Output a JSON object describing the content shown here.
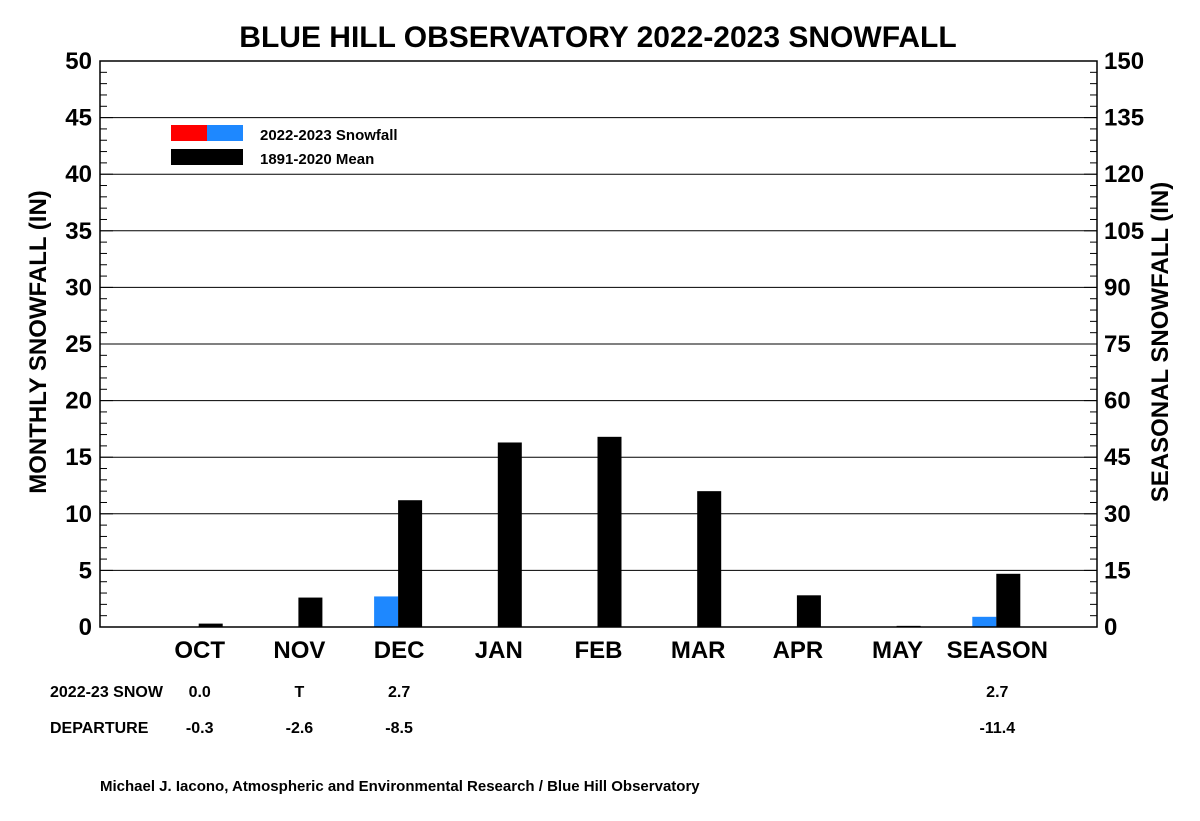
{
  "chart_data": {
    "type": "bar",
    "title": "BLUE HILL OBSERVATORY 2022-2023 SNOWFALL",
    "ylabel_left": "MONTHLY SNOWFALL (IN)",
    "ylabel_right": "SEASONAL SNOWFALL (IN)",
    "ylim_left": [
      0,
      50
    ],
    "ylim_right": [
      0,
      150
    ],
    "left_ticks": [
      "0",
      "5",
      "10",
      "15",
      "20",
      "25",
      "30",
      "35",
      "40",
      "45",
      "50"
    ],
    "right_ticks": [
      "0",
      "15",
      "30",
      "45",
      "60",
      "75",
      "90",
      "105",
      "120",
      "135",
      "150"
    ],
    "categories": [
      "OCT",
      "NOV",
      "DEC",
      "JAN",
      "FEB",
      "MAR",
      "APR",
      "MAY",
      "SEASON"
    ],
    "series": [
      {
        "name": "2022-2023 Snowfall",
        "colors": [
          "#ff0000",
          "#1e88ff"
        ],
        "color": "#1e88ff",
        "values": [
          0.0,
          0.0,
          2.7,
          null,
          null,
          null,
          null,
          null,
          2.7
        ],
        "scale": [
          "left",
          "left",
          "left",
          "left",
          "left",
          "left",
          "left",
          "left",
          "right"
        ]
      },
      {
        "name": "1891-2020 Mean",
        "color": "#000000",
        "values": [
          0.3,
          2.6,
          11.2,
          16.3,
          16.8,
          12.0,
          2.8,
          0.1,
          14.1
        ],
        "scale": [
          "left",
          "left",
          "left",
          "left",
          "left",
          "left",
          "left",
          "left",
          "right"
        ]
      }
    ],
    "grid": true,
    "legend_position": "top-left",
    "table": {
      "rows": [
        {
          "label": "2022-23 SNOW",
          "values": [
            "0.0",
            "T",
            "2.7",
            "",
            "",
            "",
            "",
            "",
            "2.7"
          ]
        },
        {
          "label": "DEPARTURE",
          "values": [
            "-0.3",
            "-2.6",
            "-8.5",
            "",
            "",
            "",
            "",
            "",
            "-11.4"
          ]
        }
      ]
    },
    "credit": "Michael J. Iacono, Atmospheric and Environmental Research / Blue Hill Observatory"
  }
}
